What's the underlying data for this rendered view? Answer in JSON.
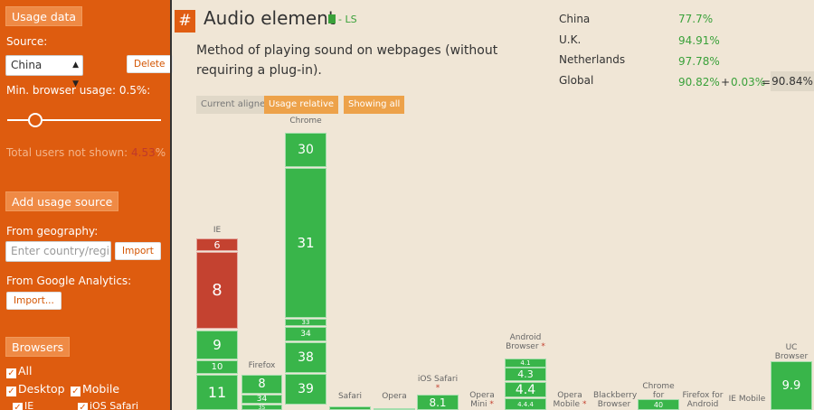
{
  "sidebar": {
    "usage_data_label": "Usage data",
    "source_label": "Source:",
    "source_value": "China",
    "delete_label": "Delete",
    "min_usage_label": "Min. browser usage: 0.5%:",
    "slider_value": 0.5,
    "total_not_shown_prefix": "Total users not shown: ",
    "total_not_shown_value": "4.53",
    "total_not_shown_suffix": "%",
    "add_source_label": "Add usage source",
    "from_geo_label": "From geography:",
    "geo_placeholder": "Enter country/regi",
    "import_label": "Import",
    "from_ga_label": "From Google Analytics:",
    "import_ga_label": "Import...",
    "browsers_label": "Browsers",
    "all_label": "All",
    "desktop_label": "Desktop",
    "mobile_label": "Mobile",
    "ie_label": "IE",
    "ios_safari_label": "iOS Safari"
  },
  "main": {
    "hash": "#",
    "title": "Audio element",
    "status": "- LS",
    "description": "Method of playing sound on webpages (without requiring a plug-in).",
    "tabs": {
      "current_aligned": "Current aligned",
      "usage_relative": "Usage relative",
      "showing_all": "Showing all"
    }
  },
  "stats": [
    {
      "region": "China",
      "value": "77.7%"
    },
    {
      "region": "U.K.",
      "value": "94.91%"
    },
    {
      "region": "Netherlands",
      "value": "97.78%"
    },
    {
      "region": "Global",
      "value": "90.82%",
      "plus": "+",
      "partial": "0.03%",
      "equals": "=",
      "total": "90.84%"
    }
  ],
  "colors": {
    "supported": "#39b54a",
    "unsupported": "#c44230",
    "sidebar": "#de5c0f"
  },
  "browsers": [
    {
      "name": "IE",
      "star": false,
      "cells": [
        {
          "label": "6",
          "status": "unsupported"
        },
        {
          "label": "8",
          "status": "unsupported"
        },
        {
          "label": "9",
          "status": "supported"
        },
        {
          "label": "10",
          "status": "supported"
        },
        {
          "label": "11",
          "status": "supported"
        }
      ]
    },
    {
      "name": "Firefox",
      "star": false,
      "cells": [
        {
          "label": "8",
          "status": "supported"
        },
        {
          "label": "34",
          "status": "supported"
        },
        {
          "label": "35",
          "status": "supported"
        }
      ]
    },
    {
      "name": "Chrome",
      "star": false,
      "cells": [
        {
          "label": "30",
          "status": "supported"
        },
        {
          "label": "31",
          "status": "supported"
        },
        {
          "label": "33",
          "status": "supported"
        },
        {
          "label": "34",
          "status": "supported"
        },
        {
          "label": "38",
          "status": "supported"
        },
        {
          "label": "39",
          "status": "supported"
        }
      ]
    },
    {
      "name": "Safari",
      "star": false,
      "cells": [
        {
          "label": "",
          "status": "supported"
        }
      ]
    },
    {
      "name": "Opera",
      "star": false,
      "cells": [
        {
          "label": "",
          "status": "supported"
        }
      ]
    },
    {
      "name": "iOS Safari",
      "star": true,
      "cells": [
        {
          "label": "8.1",
          "status": "supported"
        }
      ]
    },
    {
      "name": "Opera Mini",
      "star": true,
      "cells": []
    },
    {
      "name": "Android Browser",
      "star": true,
      "cells": [
        {
          "label": "4.1",
          "status": "supported"
        },
        {
          "label": "4.3",
          "status": "supported"
        },
        {
          "label": "4.4",
          "status": "supported"
        },
        {
          "label": "4.4.4",
          "status": "supported"
        }
      ]
    },
    {
      "name": "Opera Mobile",
      "star": true,
      "cells": []
    },
    {
      "name": "Blackberry Browser",
      "star": false,
      "cells": []
    },
    {
      "name": "Chrome for Android",
      "star": false,
      "cells": [
        {
          "label": "40",
          "status": "supported"
        }
      ]
    },
    {
      "name": "Firefox for Android",
      "star": false,
      "cells": []
    },
    {
      "name": "IE Mobile",
      "star": false,
      "cells": []
    },
    {
      "name": "UC Browser for Android",
      "star": false,
      "cells": [
        {
          "label": "9.9",
          "status": "supported"
        }
      ]
    }
  ]
}
